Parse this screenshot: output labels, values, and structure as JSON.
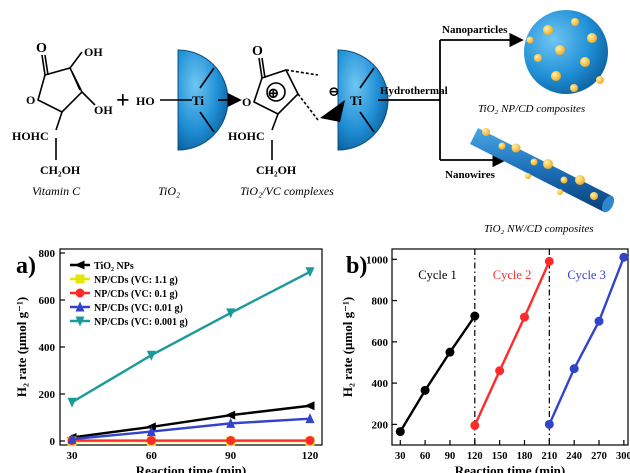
{
  "scheme": {
    "vitamin_c": {
      "oxygen": "O",
      "oh_top": "OH",
      "oh_bottom": "OH",
      "ring_oxygen": "O",
      "hohc": "HOHC",
      "ch2oh": "CH₂OH",
      "caption": "Vitamin C"
    },
    "plus": "+",
    "tio2": {
      "ho": "HO",
      "ti": "Ti",
      "caption": "TiO₂"
    },
    "complex": {
      "oxygen": "O",
      "ring_oxygen": "O",
      "positive_sign": "⊕",
      "negative_sign": "⊖",
      "ti": "Ti",
      "hohc": "HOHC",
      "ch2oh": "CH₂OH",
      "caption": "TiO₂/VC complexes"
    },
    "hydrothermal": "Hydrothermal",
    "nanoparticles": "Nanoparticles",
    "nanowires": "Nanowires",
    "np_caption": "TiO₂ NP/CD composites",
    "nw_caption": "TiO₂ NW/CD composites"
  },
  "chart_data": [
    {
      "type": "line",
      "panel": "a)",
      "xlabel": "Reaction time (min)",
      "ylabel": "H₂ rate (μmol g⁻¹)",
      "x": [
        30,
        60,
        90,
        120
      ],
      "xticks": [
        30,
        60,
        90,
        120
      ],
      "yticks": [
        0,
        200,
        400,
        600,
        800
      ],
      "xlim": [
        30,
        120
      ],
      "ylim": [
        0,
        800
      ],
      "legend_position": "top-left",
      "series": [
        {
          "name": "TiO₂ NPs",
          "color": "#000000",
          "marker": "triangle-left",
          "values": [
            15,
            60,
            110,
            150
          ]
        },
        {
          "name": "NP/CDs (VC: 1.1 g)",
          "color": "#e6e600",
          "marker": "square",
          "values": [
            0,
            0,
            0,
            0
          ]
        },
        {
          "name": "NP/CDs (VC: 0.1 g)",
          "color": "#ff2a2a",
          "marker": "circle",
          "values": [
            2,
            2,
            2,
            2
          ]
        },
        {
          "name": "NP/CDs (VC: 0.01 g)",
          "color": "#3344cc",
          "marker": "triangle-up",
          "values": [
            8,
            40,
            75,
            95
          ]
        },
        {
          "name": "NP/CDs (VC: 0.001 g)",
          "color": "#1a9a9a",
          "marker": "triangle-down",
          "values": [
            165,
            365,
            545,
            720
          ]
        }
      ]
    },
    {
      "type": "line",
      "panel": "b)",
      "xlabel": "Reaction time (min)",
      "ylabel": "H₂ rate (μmol g⁻¹)",
      "xticks": [
        30,
        60,
        90,
        120,
        150,
        180,
        210,
        240,
        270,
        300
      ],
      "yticks": [
        200,
        400,
        600,
        800,
        1000
      ],
      "xlim": [
        20,
        305
      ],
      "ylim": [
        100,
        1050
      ],
      "cycle_dividers": [
        120,
        210
      ],
      "series": [
        {
          "name": "Cycle 1",
          "color": "#000000",
          "x": [
            30,
            60,
            90,
            120
          ],
          "values": [
            165,
            365,
            550,
            725
          ]
        },
        {
          "name": "Cycle 2",
          "color": "#ff2a2a",
          "x": [
            120,
            150,
            180,
            210
          ],
          "values": [
            195,
            460,
            720,
            990
          ]
        },
        {
          "name": "Cycle 3",
          "color": "#3344cc",
          "x": [
            210,
            240,
            270,
            300
          ],
          "values": [
            200,
            470,
            700,
            1010
          ]
        }
      ]
    }
  ]
}
